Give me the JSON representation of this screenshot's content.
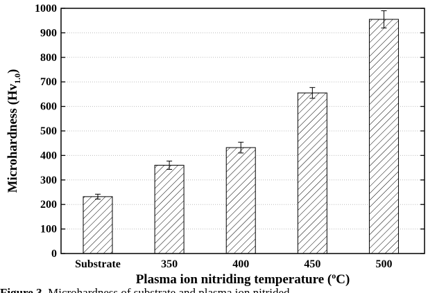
{
  "chart_data": {
    "type": "bar",
    "categories": [
      "Substrate",
      "350",
      "400",
      "450",
      "500"
    ],
    "values": [
      232,
      360,
      432,
      655,
      955
    ],
    "errors": [
      10,
      17,
      22,
      22,
      35
    ],
    "color": "#ffffff",
    "hatch": "diagonal",
    "ylim": [
      0,
      1000
    ],
    "yticks": [
      0,
      100,
      200,
      300,
      400,
      500,
      600,
      700,
      800,
      900,
      1000
    ],
    "grid": true,
    "ylabel": {
      "text": "Microhardness (Hv",
      "sub": "1.0",
      "end": ")"
    },
    "xlabel": {
      "text": "Plasma ion nitriding temperature (",
      "sup": "o",
      "end": "C)"
    },
    "caption": {
      "label": "Figure 3.",
      "text": "Microhardness of substrate and plasma ion nitrided"
    }
  }
}
